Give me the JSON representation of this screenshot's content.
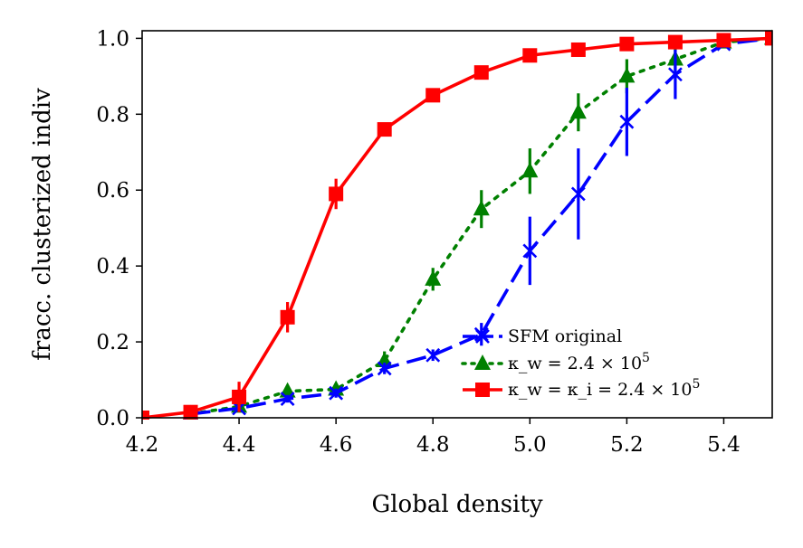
{
  "chart_data": {
    "type": "line",
    "xlabel": "Global density",
    "ylabel": "fracc. clusterized indiv",
    "xlim": [
      4.2,
      5.5
    ],
    "ylim": [
      0.0,
      1.02
    ],
    "xticks": [
      "4.2",
      "4.4",
      "4.6",
      "4.8",
      "5.0",
      "5.2",
      "5.4"
    ],
    "yticks": [
      "0.0",
      "0.2",
      "0.4",
      "0.6",
      "0.8",
      "1.0"
    ],
    "grid": false,
    "legend_position": "lower-right",
    "series": [
      {
        "name": "SFM original",
        "color": "#0000ff",
        "line_style": "dashed",
        "marker": "x",
        "x": [
          4.3,
          4.4,
          4.5,
          4.6,
          4.7,
          4.8,
          4.9,
          5.0,
          5.1,
          5.2,
          5.3,
          5.4,
          5.5
        ],
        "y": [
          0.01,
          0.025,
          0.05,
          0.065,
          0.13,
          0.165,
          0.22,
          0.44,
          0.59,
          0.78,
          0.905,
          0.985,
          1.0
        ],
        "yerr": [
          0.005,
          0.008,
          0.01,
          0.012,
          0.015,
          0.015,
          0.03,
          0.09,
          0.12,
          0.09,
          0.065,
          0.01,
          0.0
        ]
      },
      {
        "name": "κ_w = 2.4 × 10^5",
        "color": "#008000",
        "line_style": "dotted",
        "marker": "triangle",
        "x": [
          4.3,
          4.4,
          4.5,
          4.6,
          4.7,
          4.8,
          4.9,
          5.0,
          5.1,
          5.2,
          5.3,
          5.4,
          5.5
        ],
        "y": [
          0.01,
          0.03,
          0.07,
          0.075,
          0.15,
          0.365,
          0.55,
          0.65,
          0.805,
          0.9,
          0.945,
          0.99,
          1.0
        ],
        "yerr": [
          0.005,
          0.01,
          0.012,
          0.012,
          0.025,
          0.03,
          0.05,
          0.06,
          0.05,
          0.045,
          0.03,
          0.01,
          0.0
        ]
      },
      {
        "name": "κ_w = κ_i = 2.4 × 10^5",
        "color": "#ff0000",
        "line_style": "solid",
        "marker": "square",
        "x": [
          4.2,
          4.3,
          4.4,
          4.5,
          4.6,
          4.7,
          4.8,
          4.9,
          5.0,
          5.1,
          5.2,
          5.3,
          5.4,
          5.5
        ],
        "y": [
          0.0,
          0.015,
          0.055,
          0.265,
          0.59,
          0.76,
          0.85,
          0.91,
          0.955,
          0.97,
          0.985,
          0.99,
          0.995,
          1.0
        ],
        "yerr": [
          0.0,
          0.01,
          0.04,
          0.04,
          0.04,
          0.015,
          0.01,
          0.01,
          0.01,
          0.005,
          0.005,
          0.005,
          0.005,
          0.0
        ]
      }
    ]
  }
}
